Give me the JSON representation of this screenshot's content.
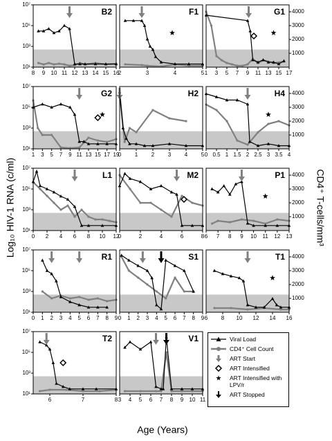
{
  "axes": {
    "ylabel": "Log₁₀ HIV-1 RNA (c/ml)",
    "y2label": "CD4⁺ T-cells/mm³",
    "xlabel": "Age (Years)",
    "ylim": [
      10,
      10000000
    ],
    "yticks": [
      {
        "value": 10,
        "label": "10¹"
      },
      {
        "value": 1000,
        "label": "10³"
      },
      {
        "value": 100000,
        "label": "10⁵"
      },
      {
        "value": 10000000,
        "label": "10⁷"
      }
    ],
    "y2lim": [
      0,
      4500
    ],
    "y2ticks": [
      1000,
      2000,
      3000,
      4000
    ],
    "detection_limit": 500,
    "log_scale": true
  },
  "legend": [
    {
      "label": "Viral Load",
      "color": "#000000"
    },
    {
      "label": "CD4⁺ Cell Count",
      "color": "#808080"
    },
    {
      "label": "ART Start",
      "color": "#808080"
    },
    {
      "label": "ART Intensified",
      "color": "#000000"
    },
    {
      "label": "ART Intensified with LPV/r",
      "color": "#000000"
    },
    {
      "label": "ART Stopped",
      "color": "#000000"
    }
  ],
  "chart_data": [
    {
      "type": "line",
      "title": "B2",
      "xlim": [
        8,
        16
      ],
      "xticks": [
        8,
        9,
        10,
        11,
        12,
        13,
        14,
        15,
        16
      ],
      "viral_load": {
        "x": [
          8.5,
          9,
          9.5,
          10,
          10.5,
          11,
          11.5,
          12,
          12.5,
          13,
          14,
          15,
          16
        ],
        "values": [
          30000,
          30000,
          50000,
          20000,
          30000,
          100000,
          50000,
          20,
          20,
          20,
          20,
          20,
          20
        ]
      },
      "cd4": {
        "x": [
          8.5,
          9,
          9.5,
          10,
          10.5,
          11,
          11.5,
          12,
          12.5,
          13,
          14,
          15,
          16
        ],
        "values": [
          300,
          200,
          300,
          200,
          250,
          200,
          100,
          150,
          300,
          200,
          300,
          200,
          250
        ]
      },
      "art_start": [
        11.5
      ]
    },
    {
      "type": "line",
      "title": "F1",
      "xlim": [
        2,
        5
      ],
      "xticks": [
        2,
        3,
        4,
        5
      ],
      "viral_load": {
        "x": [
          2.2,
          2.5,
          2.8,
          2.9,
          3,
          3.1,
          3.2,
          3.3,
          3.5,
          4,
          4.5,
          5
        ],
        "values": [
          300000,
          300000,
          300000,
          100000,
          5000,
          1000,
          500,
          100,
          30,
          20,
          20,
          20
        ]
      },
      "cd4": {
        "x": [
          2.2,
          2.8,
          3,
          3.5,
          4,
          4.5,
          5
        ],
        "values": [
          200,
          150,
          100,
          50,
          200,
          100,
          100
        ]
      },
      "art_start": [
        2.8
      ],
      "art_intensified_lpv": [
        3.9
      ]
    },
    {
      "type": "line",
      "title": "G1",
      "xlim": [
        1,
        17
      ],
      "xticks": [
        1,
        3,
        5,
        7,
        9,
        11,
        13,
        15,
        17
      ],
      "viral_load": {
        "x": [
          1,
          9,
          9.5,
          10,
          11,
          12,
          13,
          14,
          15,
          16
        ],
        "values": [
          1000000,
          300000,
          30000,
          50,
          30,
          50,
          30,
          30,
          20,
          40
        ]
      },
      "cd4": {
        "x": [
          1,
          2,
          3,
          4,
          5,
          6,
          7,
          8,
          9,
          10,
          11,
          12,
          14,
          16
        ],
        "values": [
          4000,
          3000,
          800,
          500,
          300,
          200,
          100,
          100,
          200,
          600,
          300,
          500,
          300,
          400
        ]
      },
      "art_start": [
        9.2
      ],
      "art_intensified": [
        10.2
      ],
      "art_intensified_lpv": [
        14
      ]
    },
    {
      "type": "line",
      "title": "G2",
      "xlim": [
        1,
        19
      ],
      "xticks": [
        1,
        3,
        5,
        7,
        9,
        11,
        13,
        15,
        17,
        19
      ],
      "viral_load": {
        "x": [
          1,
          3,
          5,
          7,
          9,
          10,
          11,
          12,
          13,
          15,
          17,
          19
        ],
        "values": [
          100000,
          200000,
          100000,
          200000,
          100000,
          20000,
          50,
          50,
          30,
          30,
          30,
          30
        ]
      },
      "cd4": {
        "x": [
          1,
          2,
          3,
          5,
          7,
          9,
          11,
          13,
          15,
          17,
          19
        ],
        "values": [
          3500,
          1500,
          1000,
          1000,
          100,
          50,
          100,
          800,
          600,
          500,
          700
        ]
      },
      "art_start": [
        11
      ],
      "art_intensified": [
        15
      ],
      "art_intensified_lpv": [
        16
      ]
    },
    {
      "type": "line",
      "title": "H2",
      "xlim": [
        0,
        5
      ],
      "xticks": [
        0,
        1,
        2,
        3,
        4,
        5
      ],
      "viral_load": {
        "x": [
          0,
          0.2,
          0.4,
          0.6,
          1,
          1.5,
          2,
          3,
          4,
          5
        ],
        "values": [
          3000000,
          1000,
          100,
          30,
          30,
          20,
          20,
          30,
          20,
          20
        ]
      },
      "cd4": {
        "x": [
          0,
          0.3,
          0.6,
          1,
          2,
          3,
          4
        ],
        "values": [
          4000,
          500,
          1500,
          1200,
          2800,
          2200,
          2000
        ]
      },
      "art_start": [
        0
      ]
    },
    {
      "type": "line",
      "title": "H4",
      "xlim": [
        0,
        4
      ],
      "xticks": [
        0,
        0.5,
        1,
        1.5,
        2,
        2.5,
        3,
        3.5,
        4
      ],
      "viral_load": {
        "x": [
          0,
          0.5,
          1,
          1.5,
          2,
          2.1,
          2.5,
          3,
          3.5,
          4
        ],
        "values": [
          2000000,
          1000000,
          500000,
          500000,
          200000,
          50,
          20,
          30,
          20,
          20
        ]
      },
      "cd4": {
        "x": [
          0,
          0.5,
          1,
          1.5,
          2,
          2.5,
          3,
          3.5,
          4
        ],
        "values": [
          3200,
          2800,
          2000,
          600,
          300,
          1200,
          1800,
          2000,
          1700
        ]
      },
      "art_start": [
        2
      ],
      "art_intensified_lpv": [
        3
      ]
    },
    {
      "type": "line",
      "title": "L1",
      "xlim": [
        0,
        12
      ],
      "xticks": [
        0,
        2,
        4,
        6,
        8,
        10,
        12
      ],
      "viral_load": {
        "x": [
          0,
          0.5,
          1,
          2,
          3,
          4,
          5,
          6,
          7,
          8,
          10,
          12
        ],
        "values": [
          500000,
          5000000,
          200000,
          100000,
          50000,
          20000,
          10000,
          2000,
          30,
          30,
          30,
          30
        ]
      },
      "cd4": {
        "x": [
          0,
          1,
          2,
          3,
          4,
          5,
          6,
          7,
          8,
          9,
          10,
          11,
          12
        ],
        "values": [
          3500,
          3000,
          2500,
          2000,
          1500,
          1800,
          1000,
          1500,
          1000,
          800,
          800,
          700,
          600
        ]
      },
      "art_start": [
        6
      ]
    },
    {
      "type": "line",
      "title": "M2",
      "xlim": [
        0,
        8
      ],
      "xticks": [
        0,
        2,
        4,
        6,
        8
      ],
      "viral_load": {
        "x": [
          0,
          0.5,
          1,
          2,
          3,
          4,
          5,
          5.5,
          6,
          7,
          8
        ],
        "values": [
          200000,
          3000000,
          1000000,
          500000,
          100000,
          200000,
          50000,
          30000,
          30,
          30,
          30
        ]
      },
      "cd4": {
        "x": [
          0,
          1,
          2,
          3,
          4,
          5,
          6,
          7,
          8
        ],
        "values": [
          4000,
          3000,
          2000,
          2000,
          1500,
          1000,
          2500,
          2000,
          1800
        ]
      },
      "art_start": [
        5.5
      ],
      "art_intensified": [
        6.2
      ]
    },
    {
      "type": "line",
      "title": "P1",
      "xlim": [
        6,
        13
      ],
      "xticks": [
        6,
        7,
        8,
        9,
        10,
        11,
        12,
        13
      ],
      "viral_load": {
        "x": [
          6.5,
          7,
          7.5,
          8,
          8.5,
          9,
          9.5,
          10,
          11,
          12,
          13
        ],
        "values": [
          100000,
          50000,
          200000,
          30000,
          300000,
          500000,
          50,
          30,
          30,
          30,
          30
        ]
      },
      "cd4": {
        "x": [
          6.5,
          7,
          8,
          9,
          10,
          11,
          12,
          13
        ],
        "values": [
          500,
          700,
          600,
          800,
          700,
          500,
          800,
          700
        ]
      },
      "art_start": [
        9
      ],
      "art_intensified_lpv": [
        11
      ]
    },
    {
      "type": "line",
      "title": "R1",
      "xlim": [
        0,
        9
      ],
      "xticks": [
        0,
        1,
        2,
        3,
        4,
        5,
        6,
        7,
        8,
        9
      ],
      "viral_load": {
        "x": [
          1,
          1.5,
          2,
          2.5,
          3,
          4,
          5,
          6,
          7,
          8
        ],
        "values": [
          1000000,
          100000,
          50000,
          10000,
          300,
          100,
          50,
          30,
          30,
          30
        ]
      },
      "cd4": {
        "x": [
          1,
          2,
          3,
          4,
          5,
          6,
          7,
          8,
          9
        ],
        "values": [
          1500,
          1000,
          1200,
          1000,
          1100,
          900,
          1000,
          800,
          900
        ]
      },
      "art_start": [
        2,
        5
      ]
    },
    {
      "type": "line",
      "title": "S1",
      "xlim": [
        0,
        9
      ],
      "xticks": [
        0,
        1,
        2,
        3,
        4,
        5,
        6,
        7,
        8,
        9
      ],
      "viral_load": {
        "x": [
          0.2,
          1,
          2,
          3,
          3.5,
          4,
          4.5,
          5,
          6,
          7,
          8
        ],
        "values": [
          3000000,
          1000000,
          300000,
          100000,
          20000,
          50,
          20,
          1000000,
          300000,
          100000,
          1000
        ]
      },
      "cd4": {
        "x": [
          0.2,
          1,
          2,
          3,
          4,
          5,
          6,
          7,
          8
        ],
        "values": [
          4000,
          3000,
          2500,
          2000,
          1500,
          1000,
          2500,
          1500,
          1500
        ]
      },
      "art_start": [
        2.5
      ],
      "art_stopped": [
        4.5
      ]
    },
    {
      "type": "line",
      "title": "T1",
      "xlim": [
        6,
        16
      ],
      "xticks": [
        6,
        8,
        10,
        12,
        14,
        16
      ],
      "viral_load": {
        "x": [
          7,
          8,
          9,
          10,
          10.5,
          11,
          12,
          13,
          14,
          14.5,
          15,
          16
        ],
        "values": [
          100000,
          50000,
          30000,
          20000,
          10000,
          50,
          30,
          30,
          200,
          50,
          30,
          30
        ]
      },
      "cd4": {
        "x": [
          7,
          9,
          11,
          13,
          15,
          16
        ],
        "values": [
          300,
          300,
          200,
          300,
          200,
          200
        ]
      },
      "art_start": [
        11
      ],
      "art_intensified_lpv": [
        14
      ]
    },
    {
      "type": "line",
      "title": "T2",
      "xlim": [
        5.5,
        8
      ],
      "xticks": [
        6,
        7,
        8
      ],
      "viral_load": {
        "x": [
          5.7,
          5.9,
          6,
          6.1,
          6.2,
          6.4,
          6.6,
          7,
          7.4,
          8
        ],
        "values": [
          1000000,
          500000,
          200000,
          10000,
          100,
          50,
          30,
          30,
          30,
          30
        ]
      },
      "cd4": {
        "x": [
          5.7,
          6,
          6.5,
          7,
          7.5,
          8
        ],
        "values": [
          200,
          300,
          300,
          200,
          200,
          300
        ]
      },
      "art_start": [
        5.9
      ],
      "art_intensified": [
        6.4
      ]
    },
    {
      "type": "line",
      "title": "V1",
      "xlim": [
        3,
        11
      ],
      "xticks": [
        3,
        4,
        5,
        6,
        7,
        8,
        9,
        10,
        11
      ],
      "viral_load": {
        "x": [
          3.5,
          4,
          5,
          6,
          6.5,
          7,
          7.2,
          7.5,
          8,
          9,
          10,
          11
        ],
        "values": [
          300000,
          1000000,
          200000,
          1000000,
          50,
          30,
          30,
          3000000,
          30,
          30,
          30,
          30
        ]
      },
      "cd4": {
        "x": [
          3.5,
          5,
          6.5,
          7,
          7.5,
          8,
          9,
          10,
          11
        ],
        "values": [
          200,
          200,
          200,
          200,
          3000,
          200,
          200,
          200,
          200
        ]
      },
      "art_start": [
        6.5
      ],
      "art_stopped": [
        7.5
      ]
    }
  ]
}
